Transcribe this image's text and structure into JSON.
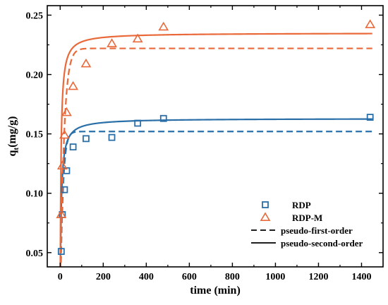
{
  "chart_data": {
    "type": "scatter",
    "xlabel": "time (min)",
    "ylabel_main": "q",
    "ylabel_sub": "t",
    "ylabel_unit": "(mg/g)",
    "xlim": [
      -60,
      1500
    ],
    "ylim": [
      0.038,
      0.258
    ],
    "xticks": [
      0,
      200,
      400,
      600,
      800,
      1000,
      1200,
      1400
    ],
    "yticks": [
      0.05,
      0.1,
      0.15,
      0.2,
      0.25
    ],
    "ytick_labels": [
      "0.05",
      "0.10",
      "0.15",
      "0.20",
      "0.25"
    ],
    "series": [
      {
        "name": "RDP",
        "marker": "square",
        "color": "#2a6fa8",
        "points": [
          [
            5,
            0.051
          ],
          [
            10,
            0.082
          ],
          [
            20,
            0.103
          ],
          [
            30,
            0.119
          ],
          [
            60,
            0.139
          ],
          [
            120,
            0.146
          ],
          [
            240,
            0.147
          ],
          [
            360,
            0.159
          ],
          [
            480,
            0.163
          ],
          [
            1440,
            0.164
          ]
        ],
        "pfo": {
          "qe": 0.152,
          "k1": 0.085
        },
        "pso": {
          "qe": 0.163,
          "k2": 1.4
        }
      },
      {
        "name": "RDP-M",
        "marker": "triangle",
        "color": "#e9693a",
        "points": [
          [
            5,
            0.082
          ],
          [
            10,
            0.123
          ],
          [
            20,
            0.149
          ],
          [
            30,
            0.168
          ],
          [
            60,
            0.19
          ],
          [
            120,
            0.209
          ],
          [
            240,
            0.226
          ],
          [
            360,
            0.23
          ],
          [
            480,
            0.24
          ],
          [
            1440,
            0.242
          ]
        ],
        "pfo": {
          "qe": 0.222,
          "k1": 0.06
        },
        "pso": {
          "qe": 0.235,
          "k2": 1.3
        }
      }
    ],
    "legend": {
      "placement": "bottom-right",
      "entries": [
        "RDP",
        "RDP-M",
        "pseudo-first-order",
        "pseudo-second-order"
      ]
    }
  }
}
